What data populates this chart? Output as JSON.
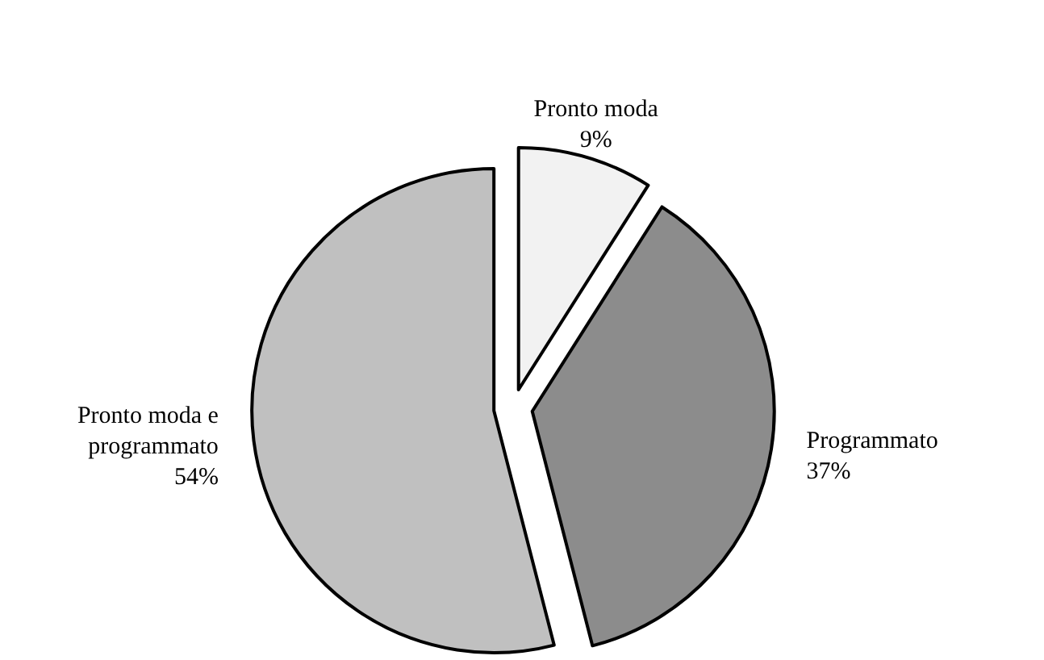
{
  "chart_data": {
    "type": "pie",
    "categories": [
      "Pronto moda",
      "Programmato",
      "Pronto moda e programmato"
    ],
    "values": [
      9,
      37,
      54
    ],
    "colors": [
      "#f2f2f2",
      "#8c8c8c",
      "#c0c0c0"
    ],
    "value_labels": [
      "9%",
      "37%",
      "54%"
    ]
  }
}
